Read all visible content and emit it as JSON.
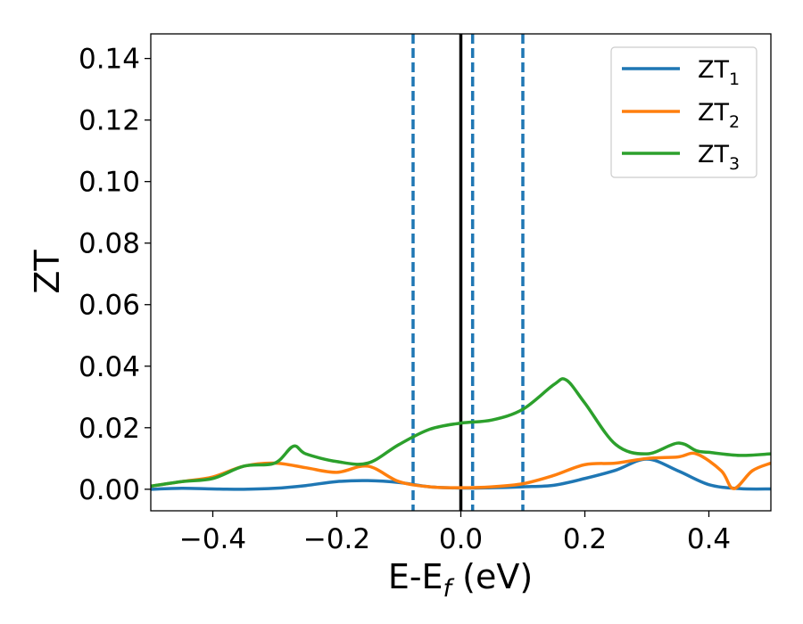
{
  "chart_data": {
    "type": "line",
    "title": "",
    "xlabel": "E-E",
    "xlabel_subscript": "f",
    "xlabel_unit": " (eV)",
    "ylabel": "ZT",
    "xlim": [
      -0.5,
      0.5
    ],
    "ylim": [
      -0.007,
      0.148
    ],
    "xticks": [
      -0.4,
      -0.2,
      0.0,
      0.2,
      0.4
    ],
    "xtick_labels": [
      "−0.4",
      "−0.2",
      "0.0",
      "0.2",
      "0.4"
    ],
    "yticks": [
      0.0,
      0.02,
      0.04,
      0.06,
      0.08,
      0.1,
      0.12,
      0.14
    ],
    "ytick_labels": [
      "0.00",
      "0.02",
      "0.04",
      "0.06",
      "0.08",
      "0.10",
      "0.12",
      "0.14"
    ],
    "grid": false,
    "legend_position": "top-right",
    "series": [
      {
        "name": "ZT",
        "subscript": "1",
        "color": "#1f77b4",
        "x": [
          -0.5,
          -0.45,
          -0.4,
          -0.35,
          -0.3,
          -0.25,
          -0.2,
          -0.15,
          -0.1,
          -0.05,
          0.0,
          0.05,
          0.1,
          0.15,
          0.2,
          0.25,
          0.3,
          0.35,
          0.4,
          0.45,
          0.5
        ],
        "y": [
          0.0,
          0.0003,
          0.0001,
          0.0,
          0.0003,
          0.0012,
          0.0025,
          0.0028,
          0.0022,
          0.0008,
          0.0004,
          0.0005,
          0.0008,
          0.0013,
          0.0035,
          0.0062,
          0.0098,
          0.006,
          0.0015,
          0.0002,
          0.0001
        ]
      },
      {
        "name": "ZT",
        "subscript": "2",
        "color": "#ff7f0e",
        "x": [
          -0.5,
          -0.45,
          -0.4,
          -0.35,
          -0.3,
          -0.25,
          -0.2,
          -0.15,
          -0.1,
          -0.05,
          0.0,
          0.05,
          0.1,
          0.15,
          0.2,
          0.25,
          0.3,
          0.35,
          0.38,
          0.42,
          0.44,
          0.47,
          0.5
        ],
        "y": [
          0.001,
          0.0025,
          0.004,
          0.0075,
          0.0085,
          0.007,
          0.0055,
          0.0075,
          0.0025,
          0.0008,
          0.0005,
          0.0008,
          0.0018,
          0.0045,
          0.008,
          0.0085,
          0.01,
          0.0105,
          0.0115,
          0.006,
          0.0002,
          0.006,
          0.0085
        ]
      },
      {
        "name": "ZT",
        "subscript": "3",
        "color": "#2ca02c",
        "x": [
          -0.5,
          -0.45,
          -0.4,
          -0.35,
          -0.3,
          -0.27,
          -0.25,
          -0.2,
          -0.15,
          -0.1,
          -0.05,
          0.0,
          0.05,
          0.1,
          0.15,
          0.17,
          0.2,
          0.25,
          0.3,
          0.35,
          0.38,
          0.4,
          0.45,
          0.5
        ],
        "y": [
          0.001,
          0.0025,
          0.0035,
          0.0075,
          0.0085,
          0.014,
          0.0115,
          0.009,
          0.0085,
          0.0145,
          0.0195,
          0.0215,
          0.0225,
          0.026,
          0.034,
          0.0355,
          0.028,
          0.0145,
          0.0115,
          0.015,
          0.0125,
          0.012,
          0.011,
          0.0115
        ]
      }
    ],
    "vertical_lines": [
      {
        "x": 0.0,
        "style": "solid",
        "color": "#000000"
      },
      {
        "x": -0.077,
        "style": "dashed",
        "color": "#1f77b4"
      },
      {
        "x": 0.019,
        "style": "dashed",
        "color": "#1f77b4"
      },
      {
        "x": 0.1,
        "style": "dashed",
        "color": "#1f77b4"
      }
    ]
  }
}
